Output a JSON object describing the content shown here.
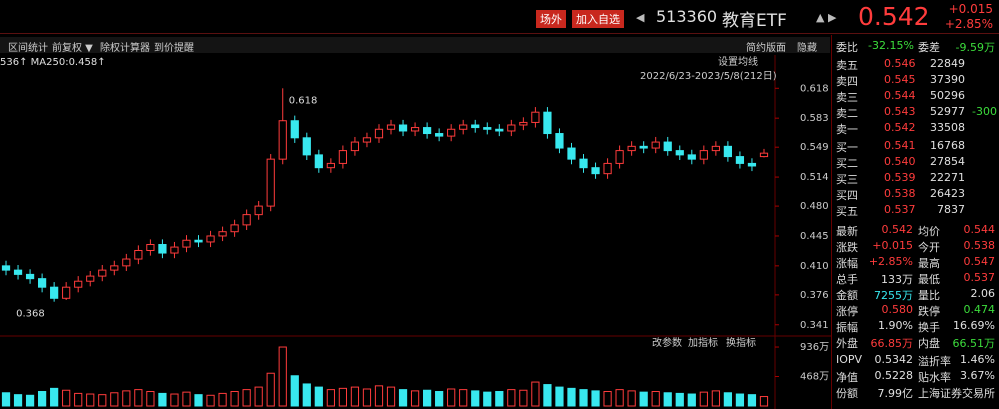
{
  "header": {
    "buttons": [
      "场外",
      "加入自选"
    ],
    "code": "513360",
    "name": "教育ETF",
    "price": "0.542",
    "change": "+0.015",
    "change_pct": "+2.85%"
  },
  "toolbar": {
    "left": [
      "区间统计",
      "前复权 ▼",
      "除权计算器",
      "到价提醒"
    ],
    "right": [
      "简约版面",
      "隐藏"
    ]
  },
  "chart_data": {
    "type": "candlestick",
    "ma_legend": "536↑  MA250:0.458↑",
    "settings_label": "设置均线",
    "range_label": "2022/6/23-2023/5/8(212日)",
    "annotations": [
      {
        "text": "0.618",
        "index": 23
      },
      {
        "text": "0.368",
        "index": 4
      }
    ],
    "up_color": "#ff3c3c",
    "down_color": "#38e8ef",
    "ylim": [
      0.329,
      0.657
    ],
    "yticks": [
      0.618,
      0.583,
      0.549,
      0.514,
      {
        "value": 0.48,
        "label": "0.480"
      },
      0.445,
      {
        "value": 0.41,
        "label": "0.410"
      },
      0.376,
      0.341
    ],
    "open": [
      0.41,
      0.405,
      0.4,
      0.395,
      0.385,
      0.372,
      0.385,
      0.392,
      0.398,
      0.405,
      0.41,
      0.418,
      0.428,
      0.435,
      0.425,
      0.432,
      0.44,
      0.438,
      0.445,
      0.45,
      0.458,
      0.47,
      0.48,
      0.535,
      0.58,
      0.56,
      0.54,
      0.525,
      0.53,
      0.545,
      0.555,
      0.56,
      0.57,
      0.575,
      0.568,
      0.572,
      0.565,
      0.562,
      0.57,
      0.575,
      0.572,
      0.57,
      0.568,
      0.575,
      0.578,
      0.59,
      0.565,
      0.548,
      0.535,
      0.525,
      0.518,
      0.53,
      0.545,
      0.55,
      0.548,
      0.555,
      0.545,
      0.54,
      0.535,
      0.545,
      0.55,
      0.538,
      0.53,
      0.538
    ],
    "high": [
      0.416,
      0.411,
      0.406,
      0.401,
      0.391,
      0.391,
      0.398,
      0.404,
      0.411,
      0.416,
      0.424,
      0.434,
      0.441,
      0.441,
      0.438,
      0.446,
      0.446,
      0.451,
      0.456,
      0.464,
      0.476,
      0.486,
      0.541,
      0.618,
      0.586,
      0.566,
      0.546,
      0.536,
      0.551,
      0.561,
      0.566,
      0.576,
      0.581,
      0.581,
      0.578,
      0.578,
      0.571,
      0.576,
      0.581,
      0.581,
      0.578,
      0.576,
      0.581,
      0.584,
      0.596,
      0.596,
      0.571,
      0.554,
      0.541,
      0.531,
      0.536,
      0.551,
      0.556,
      0.556,
      0.561,
      0.561,
      0.551,
      0.546,
      0.551,
      0.556,
      0.556,
      0.544,
      0.536,
      0.547
    ],
    "low": [
      0.399,
      0.394,
      0.389,
      0.379,
      0.368,
      0.37,
      0.379,
      0.386,
      0.392,
      0.399,
      0.404,
      0.412,
      0.422,
      0.419,
      0.419,
      0.426,
      0.432,
      0.432,
      0.439,
      0.444,
      0.452,
      0.464,
      0.474,
      0.529,
      0.554,
      0.534,
      0.519,
      0.519,
      0.524,
      0.539,
      0.549,
      0.554,
      0.564,
      0.562,
      0.562,
      0.559,
      0.556,
      0.556,
      0.564,
      0.566,
      0.564,
      0.562,
      0.562,
      0.569,
      0.572,
      0.559,
      0.542,
      0.529,
      0.519,
      0.512,
      0.512,
      0.524,
      0.539,
      0.542,
      0.542,
      0.539,
      0.534,
      0.529,
      0.529,
      0.539,
      0.532,
      0.524,
      0.521,
      0.537
    ],
    "close": [
      0.405,
      0.4,
      0.395,
      0.385,
      0.372,
      0.385,
      0.392,
      0.398,
      0.405,
      0.41,
      0.418,
      0.428,
      0.435,
      0.425,
      0.432,
      0.44,
      0.438,
      0.445,
      0.45,
      0.458,
      0.47,
      0.48,
      0.535,
      0.58,
      0.56,
      0.54,
      0.525,
      0.53,
      0.545,
      0.555,
      0.56,
      0.57,
      0.575,
      0.568,
      0.572,
      0.565,
      0.562,
      0.57,
      0.575,
      0.572,
      0.57,
      0.568,
      0.575,
      0.578,
      0.59,
      0.565,
      0.548,
      0.535,
      0.525,
      0.518,
      0.53,
      0.545,
      0.55,
      0.548,
      0.555,
      0.545,
      0.54,
      0.535,
      0.545,
      0.55,
      0.538,
      0.53,
      0.527,
      0.542
    ],
    "volume_buttons": [
      "改参数",
      "加指标",
      "换指标"
    ],
    "volume_ylim": [
      0,
      1000
    ],
    "volume_ticks": [
      {
        "value": 936,
        "label": "936万"
      },
      {
        "value": 468,
        "label": "468万"
      }
    ],
    "volume": [
      210,
      180,
      170,
      230,
      280,
      250,
      200,
      190,
      180,
      210,
      240,
      260,
      230,
      200,
      190,
      220,
      180,
      170,
      200,
      230,
      260,
      300,
      520,
      936,
      480,
      350,
      300,
      260,
      280,
      300,
      270,
      320,
      300,
      260,
      240,
      250,
      230,
      270,
      260,
      240,
      220,
      230,
      260,
      250,
      380,
      340,
      300,
      280,
      260,
      240,
      230,
      260,
      240,
      220,
      230,
      210,
      200,
      190,
      220,
      240,
      210,
      190,
      180,
      150
    ]
  },
  "order_book": {
    "ratio_label": "委比",
    "ratio": "-32.15%",
    "diff_label": "委差",
    "diff": "-9.59万",
    "sell": [
      {
        "label": "卖五",
        "price": "0.546",
        "volume": "22849"
      },
      {
        "label": "卖四",
        "price": "0.545",
        "volume": "37390"
      },
      {
        "label": "卖三",
        "price": "0.544",
        "volume": "50296"
      },
      {
        "label": "卖二",
        "price": "0.543",
        "volume": "52977",
        "delta": "-300"
      },
      {
        "label": "卖一",
        "price": "0.542",
        "volume": "33508"
      }
    ],
    "buy": [
      {
        "label": "买一",
        "price": "0.541",
        "volume": "16768"
      },
      {
        "label": "买二",
        "price": "0.540",
        "volume": "27854"
      },
      {
        "label": "买三",
        "price": "0.539",
        "volume": "22271"
      },
      {
        "label": "买四",
        "price": "0.538",
        "volume": "26423"
      },
      {
        "label": "买五",
        "price": "0.537",
        "volume": "7837"
      }
    ]
  },
  "stats": [
    [
      {
        "label": "最新",
        "value": "0.542",
        "color": "#ff3c3c"
      },
      {
        "label": "均价",
        "value": "0.544",
        "color": "#ff3c3c"
      }
    ],
    [
      {
        "label": "涨跌",
        "value": "+0.015",
        "color": "#ff3c3c"
      },
      {
        "label": "今开",
        "value": "0.538",
        "color": "#ff3c3c"
      }
    ],
    [
      {
        "label": "涨幅",
        "value": "+2.85%",
        "color": "#ff3c3c"
      },
      {
        "label": "最高",
        "value": "0.547",
        "color": "#ff3c3c"
      }
    ],
    [
      {
        "label": "总手",
        "value": "133万",
        "color": "#e0e0e0"
      },
      {
        "label": "最低",
        "value": "0.537",
        "color": "#ff3c3c"
      }
    ],
    [
      {
        "label": "金额",
        "value": "7255万",
        "color": "#38e8ef"
      },
      {
        "label": "量比",
        "value": "2.06",
        "color": "#e0e0e0"
      }
    ],
    [
      {
        "label": "涨停",
        "value": "0.580",
        "color": "#ff3c3c"
      },
      {
        "label": "跌停",
        "value": "0.474",
        "color": "#3cdc3c"
      }
    ],
    [
      {
        "label": "振幅",
        "value": "1.90%",
        "color": "#e0e0e0"
      },
      {
        "label": "换手",
        "value": "16.69%",
        "color": "#e0e0e0"
      }
    ],
    [
      {
        "label": "外盘",
        "value": "66.85万",
        "color": "#ff3c3c"
      },
      {
        "label": "内盘",
        "value": "66.51万",
        "color": "#3cdc3c"
      }
    ],
    [
      {
        "label": "IOPV",
        "value": "0.5342",
        "color": "#e0e0e0"
      },
      {
        "label": "溢折率",
        "value": "1.46%",
        "color": "#e0e0e0"
      }
    ],
    [
      {
        "label": "净值",
        "value": "0.5228",
        "color": "#e0e0e0"
      },
      {
        "label": "贴水率",
        "value": "3.67%",
        "color": "#e0e0e0"
      }
    ],
    [
      {
        "label": "份额",
        "value": "7.99亿",
        "color": "#e0e0e0"
      },
      {
        "label": "上海证券交易所",
        "value": "",
        "color": "#e0e0e0"
      }
    ]
  ]
}
